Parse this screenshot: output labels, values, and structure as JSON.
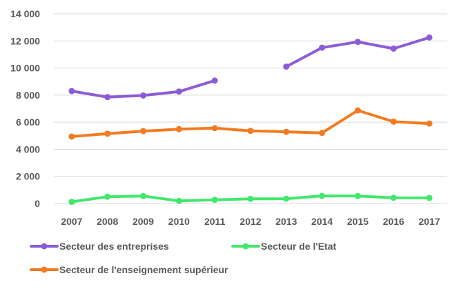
{
  "chart_data": {
    "type": "line",
    "title": "",
    "xlabel": "",
    "ylabel": "",
    "categories": [
      "2007",
      "2008",
      "2009",
      "2010",
      "2011",
      "2012",
      "2013",
      "2014",
      "2015",
      "2016",
      "2017"
    ],
    "ylim": [
      0,
      14000
    ],
    "yticks": [
      0,
      2000,
      4000,
      6000,
      8000,
      10000,
      12000,
      14000
    ],
    "ytick_labels": [
      "0",
      "2 000",
      "4 000",
      "6 000",
      "8 000",
      "10 000",
      "12 000",
      "14 000"
    ],
    "grid": "horizontal",
    "legend_position": "bottom",
    "series": [
      {
        "name": "Secteur des entreprises",
        "color": "#8e5bd6",
        "values": [
          8300,
          7850,
          7970,
          8260,
          9070,
          null,
          10100,
          11500,
          11930,
          11430,
          12250
        ]
      },
      {
        "name": "Secteur de l'Etat",
        "color": "#41e86b",
        "values": [
          120,
          500,
          550,
          190,
          270,
          340,
          350,
          560,
          550,
          420,
          410
        ]
      },
      {
        "name": "Secteur de l'enseignement supérieur",
        "color": "#f47a1f",
        "values": [
          4940,
          5150,
          5340,
          5490,
          5560,
          5360,
          5290,
          5210,
          6870,
          6040,
          5900
        ]
      }
    ]
  }
}
